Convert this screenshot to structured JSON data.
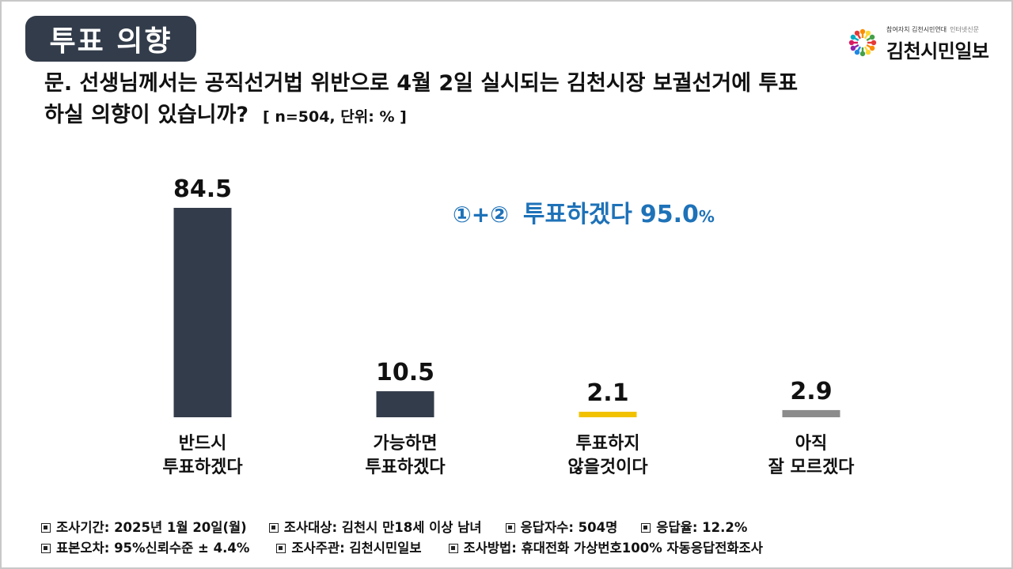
{
  "header": {
    "badge": "투표 의향",
    "logo_tagline": "참여자치 김천시민연대",
    "logo_tagline2": "인터넷신문",
    "logo_name": "김천시민일보"
  },
  "question": {
    "line1": "문. 선생님께서는 공직선거법 위반으로 4월 2일 실시되는 김천시장 보궐선거에 투표",
    "line2": "하실 의향이 있습니까?",
    "meta": "[ n=504, 단위: % ]"
  },
  "annotation": {
    "prefix": "①+②",
    "label": "투표하겠다",
    "value": "95.0",
    "unit": "%",
    "color": "#1e72b8"
  },
  "chart_data": {
    "type": "bar",
    "categories": [
      [
        "반드시",
        "투표하겠다"
      ],
      [
        "가능하면",
        "투표하겠다"
      ],
      [
        "투표하지",
        "않을것이다"
      ],
      [
        "아직",
        "잘 모르겠다"
      ]
    ],
    "values": [
      84.5,
      10.5,
      2.1,
      2.9
    ],
    "value_labels": [
      "84.5",
      "10.5",
      "2.1",
      "2.9"
    ],
    "colors": [
      "#333c4a",
      "#333c4a",
      "#f2c200",
      "#8c8c8c"
    ],
    "unit": "%",
    "ylim": [
      0,
      84.5
    ],
    "grid": false,
    "legend": "none"
  },
  "footer": {
    "row1": [
      "조사기간: 2025년 1월 20일(월)",
      "조사대상: 김천시 만18세 이상 남녀",
      "응답자수: 504명",
      "응답율: 12.2%"
    ],
    "row2": [
      "표본오차: 95%신뢰수준 ± 4.4%",
      "조사주관: 김천시민일보",
      "조사방법: 휴대전화 가상번호100% 자동응답전화조사"
    ]
  }
}
